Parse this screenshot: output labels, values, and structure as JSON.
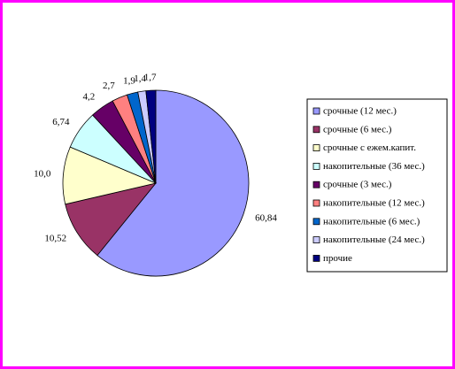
{
  "chart_data": {
    "type": "pie",
    "categories": [
      "срочные (12 мес.)",
      "срочные (6 мес.)",
      "срочные с ежем.капит.",
      "накопительные (36 мес.)",
      "срочные (3 мес.)",
      "накопительные (12 мес.)",
      "накопительные (6 мес.)",
      "накопительные (24 мес.)",
      "прочие"
    ],
    "values": [
      60.84,
      10.52,
      10.0,
      6.74,
      4.2,
      2.7,
      1.9,
      1.4,
      1.7
    ],
    "value_labels": [
      "60,84",
      "10,52",
      "10,0",
      "6,74",
      "4,2",
      "2,7",
      "1,9",
      "1,4",
      "1,7"
    ],
    "colors": [
      "#9999ff",
      "#993366",
      "#ffffcc",
      "#ccffff",
      "#660066",
      "#ff8080",
      "#0066cc",
      "#ccccff",
      "#000080"
    ],
    "legend": "right"
  }
}
